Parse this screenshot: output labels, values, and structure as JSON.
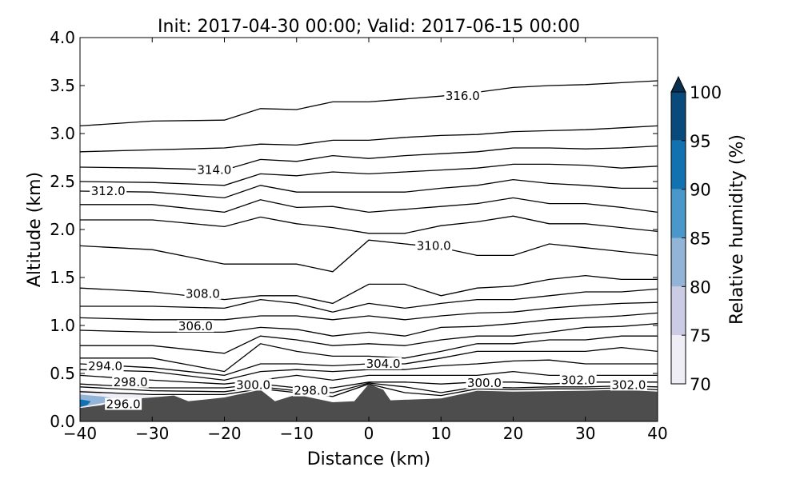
{
  "chart_data": {
    "type": "contour",
    "title": "Init: 2017-04-30 00:00; Valid: 2017-06-15 00:00",
    "xlabel": "Distance (km)",
    "ylabel": "Altitude (km)",
    "xlim": [
      -40,
      40
    ],
    "ylim": [
      0,
      4
    ],
    "xticks": [
      "−40",
      "−30",
      "−20",
      "−10",
      "0",
      "10",
      "20",
      "30",
      "40"
    ],
    "xtick_values": [
      -40,
      -30,
      -20,
      -10,
      0,
      10,
      20,
      30,
      40
    ],
    "yticks": [
      "0.0",
      "0.5",
      "1.0",
      "1.5",
      "2.0",
      "2.5",
      "3.0",
      "3.5",
      "4.0"
    ],
    "ytick_values": [
      0,
      0.5,
      1,
      1.5,
      2,
      2.5,
      3,
      3.5,
      4
    ],
    "colorbar": {
      "label": "Relative humidity (%)",
      "ticks": [
        "70",
        "75",
        "80",
        "85",
        "90",
        "95",
        "100"
      ],
      "tick_values": [
        70,
        75,
        80,
        85,
        90,
        95,
        100
      ],
      "levels": [
        {
          "range": [
            70,
            75
          ],
          "color": "#efedf5"
        },
        {
          "range": [
            75,
            80
          ],
          "color": "#cbcbe3"
        },
        {
          "range": [
            80,
            85
          ],
          "color": "#92b4d6"
        },
        {
          "range": [
            85,
            90
          ],
          "color": "#4a98c9"
        },
        {
          "range": [
            90,
            95
          ],
          "color": "#1171b1"
        },
        {
          "range": [
            95,
            100
          ],
          "color": "#084a7b"
        }
      ],
      "extend_color": "#08304f"
    },
    "terrain": {
      "color": "#4d4d4d",
      "x": [
        -40,
        -37,
        -35,
        -30,
        -27,
        -25,
        -20,
        -15,
        -13,
        -10,
        -5,
        -2,
        0,
        2,
        3,
        10,
        15,
        20,
        30,
        35,
        40
      ],
      "alt": [
        0.14,
        0.17,
        0.22,
        0.25,
        0.27,
        0.21,
        0.25,
        0.33,
        0.21,
        0.28,
        0.2,
        0.21,
        0.39,
        0.33,
        0.22,
        0.24,
        0.32,
        0.31,
        0.32,
        0.33,
        0.31
      ]
    },
    "rh_fill": [
      {
        "range": [
          70,
          75
        ],
        "points": [
          [
            -40,
            0.14
          ],
          [
            -40,
            0.33
          ],
          [
            -36,
            0.31
          ],
          [
            -32,
            0.28
          ],
          [
            -28,
            0.25
          ],
          [
            -32,
            0.22
          ],
          [
            -37,
            0.18
          ]
        ]
      },
      {
        "range": [
          80,
          85
        ],
        "points": [
          [
            -40,
            0.15
          ],
          [
            -40,
            0.28
          ],
          [
            -37,
            0.26
          ],
          [
            -34,
            0.23
          ],
          [
            -37,
            0.19
          ]
        ]
      },
      {
        "range": [
          90,
          95
        ],
        "points": [
          [
            -40,
            0.15
          ],
          [
            -40,
            0.23
          ],
          [
            -38.5,
            0.21
          ],
          [
            -39,
            0.17
          ]
        ]
      }
    ],
    "contour_x": [
      -40,
      -30,
      -20,
      -15,
      -10,
      -5,
      0,
      5,
      10,
      15,
      20,
      25,
      30,
      35,
      40
    ],
    "contours": [
      {
        "level": 316,
        "alt": [
          3.08,
          3.13,
          3.14,
          3.26,
          3.25,
          3.33,
          3.33,
          3.36,
          3.39,
          3.43,
          3.48,
          3.5,
          3.51,
          3.53,
          3.55
        ]
      },
      {
        "level": 315,
        "alt": [
          2.81,
          2.83,
          2.85,
          2.89,
          2.88,
          2.93,
          2.93,
          2.96,
          2.98,
          2.99,
          3.02,
          3.03,
          3.04,
          3.06,
          3.08
        ]
      },
      {
        "level": 314,
        "alt": [
          2.65,
          2.64,
          2.62,
          2.73,
          2.71,
          2.77,
          2.74,
          2.77,
          2.79,
          2.81,
          2.85,
          2.85,
          2.84,
          2.85,
          2.87
        ]
      },
      {
        "level": 313,
        "alt": [
          2.5,
          2.49,
          2.46,
          2.58,
          2.56,
          2.6,
          2.58,
          2.6,
          2.62,
          2.64,
          2.68,
          2.68,
          2.67,
          2.64,
          2.66
        ]
      },
      {
        "level": 312,
        "alt": [
          2.4,
          2.39,
          2.33,
          2.46,
          2.39,
          2.39,
          2.39,
          2.39,
          2.43,
          2.46,
          2.52,
          2.48,
          2.46,
          2.43,
          2.43
        ]
      },
      {
        "level": 311.5,
        "alt": [
          2.26,
          2.26,
          2.18,
          2.31,
          2.23,
          2.24,
          2.18,
          2.21,
          2.24,
          2.27,
          2.33,
          2.27,
          2.27,
          2.23,
          2.18
        ]
      },
      {
        "level": 311,
        "alt": [
          2.1,
          2.1,
          2.03,
          2.13,
          2.06,
          2.02,
          1.96,
          1.96,
          2.04,
          2.08,
          2.14,
          2.06,
          2.06,
          2.02,
          1.98
        ]
      },
      {
        "level": 310,
        "alt": [
          1.83,
          1.79,
          1.64,
          1.64,
          1.64,
          1.56,
          1.89,
          1.85,
          1.81,
          1.73,
          1.73,
          1.85,
          1.81,
          1.77,
          1.73
        ]
      },
      {
        "level": 309,
        "alt": [
          1.39,
          1.35,
          1.27,
          1.31,
          1.31,
          1.23,
          1.43,
          1.43,
          1.31,
          1.39,
          1.41,
          1.48,
          1.52,
          1.48,
          1.48
        ]
      },
      {
        "level": 308,
        "alt": [
          1.2,
          1.2,
          1.18,
          1.27,
          1.23,
          1.14,
          1.23,
          1.18,
          1.23,
          1.27,
          1.27,
          1.31,
          1.35,
          1.35,
          1.38
        ]
      },
      {
        "level": 307,
        "alt": [
          1.08,
          1.06,
          1.06,
          1.1,
          1.1,
          1.06,
          1.1,
          1.06,
          1.1,
          1.13,
          1.14,
          1.18,
          1.21,
          1.23,
          1.24
        ]
      },
      {
        "level": 306,
        "alt": [
          0.95,
          0.93,
          0.93,
          0.98,
          0.96,
          0.89,
          0.93,
          0.89,
          0.98,
          0.99,
          1.02,
          1.06,
          1.08,
          1.1,
          1.13
        ]
      },
      {
        "level": 305.5,
        "alt": [
          0.79,
          0.79,
          0.71,
          0.89,
          0.85,
          0.79,
          0.81,
          0.79,
          0.85,
          0.89,
          0.89,
          0.93,
          0.98,
          0.99,
          1.02
        ]
      },
      {
        "level": 305,
        "alt": [
          0.66,
          0.66,
          0.52,
          0.81,
          0.73,
          0.68,
          0.68,
          0.66,
          0.73,
          0.81,
          0.81,
          0.85,
          0.85,
          0.89,
          0.89
        ]
      },
      {
        "level": 304.5,
        "alt": [
          0.6,
          0.56,
          0.48,
          0.6,
          0.6,
          0.58,
          0.6,
          0.6,
          0.66,
          0.73,
          0.73,
          0.73,
          0.73,
          0.77,
          0.73
        ]
      },
      {
        "level": 304,
        "alt": [
          0.54,
          0.52,
          0.43,
          0.52,
          0.54,
          0.52,
          0.54,
          0.54,
          0.58,
          0.6,
          0.63,
          0.64,
          0.6,
          0.6,
          0.6
        ]
      },
      {
        "level": 302,
        "alt": [
          0.48,
          0.43,
          0.39,
          0.43,
          0.48,
          0.43,
          0.48,
          0.48,
          0.48,
          0.48,
          0.52,
          0.48,
          0.48,
          0.48,
          0.48
        ]
      },
      {
        "level": 300,
        "alt": [
          0.39,
          0.35,
          0.35,
          0.39,
          0.35,
          0.35,
          0.41,
          0.41,
          0.39,
          0.41,
          0.41,
          0.39,
          0.41,
          0.41,
          0.41
        ]
      },
      {
        "level": 298,
        "alt": [
          0.36,
          0.32,
          0.31,
          0.36,
          0.32,
          0.3,
          0.4,
          0.36,
          0.3,
          0.36,
          0.35,
          0.36,
          0.36,
          0.37,
          0.36
        ]
      },
      {
        "level": 296,
        "alt": [
          0.31,
          0.28,
          0.28,
          0.34,
          0.3,
          0.26,
          0.39,
          0.3,
          0.27,
          0.34,
          0.33,
          0.34,
          0.34,
          0.35,
          0.33
        ]
      }
    ],
    "contour_labels": [
      {
        "text": "316.0",
        "x": 13,
        "alt": 3.39
      },
      {
        "text": "314.0",
        "x": -21.4,
        "alt": 2.62
      },
      {
        "text": "312.0",
        "x": -36.1,
        "alt": 2.4
      },
      {
        "text": "310.0",
        "x": 9,
        "alt": 1.83
      },
      {
        "text": "308.0",
        "x": -23,
        "alt": 1.33
      },
      {
        "text": "306.0",
        "x": -24,
        "alt": 0.99
      },
      {
        "text": "304.0",
        "x": 2,
        "alt": 0.6
      },
      {
        "text": "302.0",
        "x": 29,
        "alt": 0.43
      },
      {
        "text": "302.0",
        "x": 36,
        "alt": 0.38
      },
      {
        "text": "300.0",
        "x": 16,
        "alt": 0.4
      },
      {
        "text": "300.0",
        "x": -16,
        "alt": 0.38
      },
      {
        "text": "298.0",
        "x": -8,
        "alt": 0.32
      },
      {
        "text": "298.0",
        "x": -33,
        "alt": 0.41
      },
      {
        "text": "296.0",
        "x": -34,
        "alt": 0.32
      },
      {
        "text": "294.0",
        "x": -36.5,
        "alt": 0.29
      }
    ]
  }
}
